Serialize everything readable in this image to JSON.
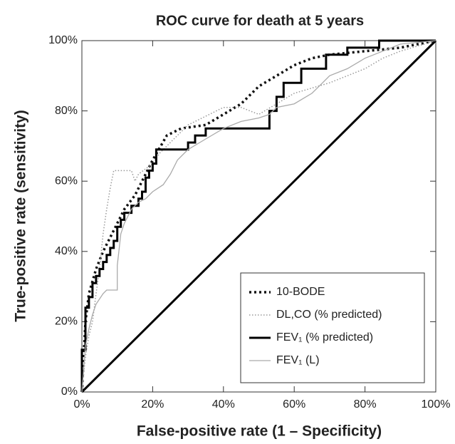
{
  "chart_data": {
    "type": "line",
    "title": "ROC curve for death at 5 years",
    "x_label": "False-positive rate (1 – Specificity)",
    "y_label": "True-positive rate (sensitivity)",
    "xlim": [
      0,
      100
    ],
    "ylim": [
      0,
      100
    ],
    "xticks": [
      {
        "value": 0,
        "label": "0%"
      },
      {
        "value": 20,
        "label": "20%"
      },
      {
        "value": 40,
        "label": "40%"
      },
      {
        "value": 60,
        "label": "60%"
      },
      {
        "value": 80,
        "label": "80%"
      },
      {
        "value": 100,
        "label": "100%"
      }
    ],
    "yticks": [
      {
        "value": 0,
        "label": "0%"
      },
      {
        "value": 20,
        "label": "20%"
      },
      {
        "value": 40,
        "label": "40%"
      },
      {
        "value": 60,
        "label": "60%"
      },
      {
        "value": 80,
        "label": "80%"
      },
      {
        "value": 100,
        "label": "100%"
      }
    ],
    "grid": false,
    "diagonal": true,
    "legend": "lower right",
    "series": [
      {
        "name": "10-BODE",
        "color": "#111111",
        "style": "dotted",
        "width": 3.5,
        "x": [
          0,
          1,
          2,
          4,
          6,
          8,
          10,
          12,
          15,
          18,
          20,
          24,
          28,
          35,
          40,
          45,
          50,
          55,
          60,
          65,
          70,
          80,
          90,
          95,
          100
        ],
        "values": [
          0,
          20,
          28,
          35,
          40,
          44,
          48,
          52,
          56,
          62,
          66,
          73,
          75,
          76,
          79,
          82,
          87,
          90,
          93,
          95,
          96,
          97,
          98,
          99,
          100
        ]
      },
      {
        "name": "DL,CO (% predicted)",
        "color": "#999999",
        "style": "dotted",
        "width": 1.5,
        "x": [
          0,
          1,
          2,
          3,
          4,
          5,
          6,
          7,
          8,
          9,
          14,
          15,
          16,
          20,
          22,
          26,
          30,
          34,
          38,
          40,
          45,
          50,
          55,
          60,
          70,
          75,
          80,
          85,
          90,
          100
        ],
        "values": [
          0,
          10,
          16,
          20,
          28,
          35,
          45,
          52,
          58,
          63,
          63,
          60,
          62,
          65,
          68,
          72,
          76,
          78,
          80,
          81,
          81,
          79,
          82,
          85,
          88,
          90,
          92,
          95,
          97,
          100
        ]
      },
      {
        "name": "FEV₁ (% predicted)",
        "color": "#000000",
        "style": "solid",
        "width": 3,
        "x": [
          0,
          0,
          1,
          1,
          2,
          2,
          3,
          3,
          4,
          4,
          5,
          5,
          6,
          6,
          7,
          7,
          8,
          8,
          9,
          9,
          10,
          10,
          11,
          11,
          12,
          12,
          14,
          14,
          16,
          16,
          17,
          17,
          18,
          18,
          19,
          19,
          20,
          20,
          21,
          21,
          30,
          30,
          32,
          32,
          35,
          35,
          53,
          53,
          55,
          55,
          57,
          57,
          62,
          62,
          69,
          69,
          75,
          75,
          84,
          84,
          100
        ],
        "values": [
          0,
          12,
          12,
          24,
          24,
          27,
          27,
          31,
          31,
          33,
          33,
          35,
          35,
          37,
          37,
          39,
          39,
          41,
          41,
          43,
          43,
          47,
          47,
          49,
          49,
          51,
          51,
          53,
          53,
          55,
          55,
          57,
          57,
          61,
          61,
          63,
          63,
          65,
          65,
          69,
          69,
          71,
          71,
          73,
          73,
          75,
          75,
          80,
          80,
          84,
          84,
          88,
          88,
          92,
          92,
          96,
          96,
          98,
          98,
          100,
          100
        ]
      },
      {
        "name": "FEV₁ (L)",
        "color": "#aaaaaa",
        "style": "solid",
        "width": 1.3,
        "x": [
          0,
          1,
          2,
          3,
          4,
          6,
          7,
          10,
          10,
          11,
          12,
          14,
          16,
          18,
          20,
          23,
          25,
          27,
          30,
          35,
          40,
          45,
          50,
          53,
          55,
          60,
          65,
          68,
          70,
          75,
          80,
          85,
          90,
          100
        ],
        "values": [
          0,
          13,
          18,
          22,
          25,
          28,
          29,
          29,
          36,
          45,
          48,
          52,
          54,
          55,
          57,
          59,
          62,
          66,
          69,
          72,
          75,
          77,
          78,
          79,
          81,
          82,
          85,
          88,
          90,
          92,
          95,
          97,
          99,
          100
        ]
      }
    ]
  }
}
